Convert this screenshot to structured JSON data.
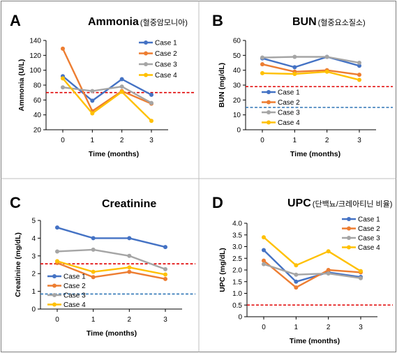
{
  "chart_data": [
    {
      "panel": "A",
      "type": "line",
      "title": "Ammonia",
      "title_note": "(혈중암모니아)",
      "xlabel": "Time (months)",
      "ylabel": "Ammonia (U/L)",
      "x": [
        0,
        1,
        2,
        3
      ],
      "ylim": [
        20,
        140
      ],
      "yticks": [
        20,
        40,
        60,
        80,
        100,
        120,
        140
      ],
      "series": [
        {
          "name": "Case 1",
          "color": "#4472C4",
          "values": [
            92,
            59,
            88,
            67
          ]
        },
        {
          "name": "Case 2",
          "color": "#ED7D31",
          "values": [
            129,
            45,
            72,
            55
          ]
        },
        {
          "name": "Case 3",
          "color": "#A5A5A5",
          "values": [
            77,
            72,
            78,
            56
          ]
        },
        {
          "name": "Case 4",
          "color": "#FFC000",
          "values": [
            89,
            42,
            71,
            32
          ]
        }
      ],
      "reference_lines": [
        {
          "value": 70,
          "color": "#E00000"
        }
      ],
      "legend": "top-right"
    },
    {
      "panel": "B",
      "type": "line",
      "title": "BUN",
      "title_note": "(혈중요소질소)",
      "xlabel": "Time (months)",
      "ylabel": "BUN (mg/dL)",
      "x": [
        0,
        1,
        2,
        3
      ],
      "ylim": [
        0,
        60
      ],
      "yticks": [
        0,
        10,
        20,
        30,
        40,
        50,
        60
      ],
      "series": [
        {
          "name": "Case 1",
          "color": "#4472C4",
          "values": [
            48,
            42,
            49,
            43
          ]
        },
        {
          "name": "Case 2",
          "color": "#ED7D31",
          "values": [
            44,
            39,
            40,
            37
          ]
        },
        {
          "name": "Case 3",
          "color": "#A5A5A5",
          "values": [
            48.5,
            49,
            49,
            45
          ]
        },
        {
          "name": "Case 4",
          "color": "#FFC000",
          "values": [
            38,
            37.5,
            39,
            33.5
          ]
        }
      ],
      "reference_lines": [
        {
          "value": 29,
          "color": "#E00000"
        },
        {
          "value": 15,
          "color": "#2E75B6"
        }
      ],
      "legend": "center-left"
    },
    {
      "panel": "C",
      "type": "line",
      "title": "Creatinine",
      "title_note": "",
      "xlabel": "Time (months)",
      "ylabel": "Creatinine (mg/dL)",
      "x": [
        0,
        1,
        2,
        3
      ],
      "ylim": [
        0,
        5
      ],
      "yticks": [
        0,
        1,
        2,
        3,
        4,
        5
      ],
      "series": [
        {
          "name": "Case 1",
          "color": "#4472C4",
          "values": [
            4.6,
            4.0,
            4.0,
            3.5
          ]
        },
        {
          "name": "Case 2",
          "color": "#ED7D31",
          "values": [
            2.6,
            1.8,
            2.1,
            1.7
          ]
        },
        {
          "name": "Case 3",
          "color": "#A5A5A5",
          "values": [
            3.25,
            3.35,
            3.0,
            2.25
          ]
        },
        {
          "name": "Case 4",
          "color": "#FFC000",
          "values": [
            2.7,
            2.1,
            2.35,
            1.95
          ]
        }
      ],
      "reference_lines": [
        {
          "value": 2.55,
          "color": "#E00000"
        },
        {
          "value": 0.85,
          "color": "#2E75B6"
        }
      ],
      "legend": "bottom-left"
    },
    {
      "panel": "D",
      "type": "line",
      "title": "UPC",
      "title_note": "(단백뇨/크레아티닌 비율)",
      "xlabel": "Time (months)",
      "ylabel": "UPC (mg/dL)",
      "x": [
        0,
        1,
        2,
        3
      ],
      "ylim": [
        0,
        4.0
      ],
      "yticks": [
        0,
        0.5,
        1.0,
        1.5,
        2.0,
        2.5,
        3.0,
        3.5,
        4.0
      ],
      "ytick_labels": [
        "0",
        "0.5",
        "1.0",
        "1.5",
        "2.0",
        "2.5",
        "3.0",
        "3.5",
        "4.0"
      ],
      "series": [
        {
          "name": "Case 1",
          "color": "#4472C4",
          "values": [
            2.85,
            1.5,
            1.9,
            1.7
          ]
        },
        {
          "name": "Case 2",
          "color": "#ED7D31",
          "values": [
            2.4,
            1.25,
            2.0,
            1.9
          ]
        },
        {
          "name": "Case 3",
          "color": "#A5A5A5",
          "values": [
            2.25,
            1.8,
            1.85,
            1.65
          ]
        },
        {
          "name": "Case 4",
          "color": "#FFC000",
          "values": [
            3.4,
            2.2,
            2.8,
            1.95
          ]
        }
      ],
      "reference_lines": [
        {
          "value": 0.5,
          "color": "#E00000"
        }
      ],
      "legend": "top-right"
    }
  ]
}
